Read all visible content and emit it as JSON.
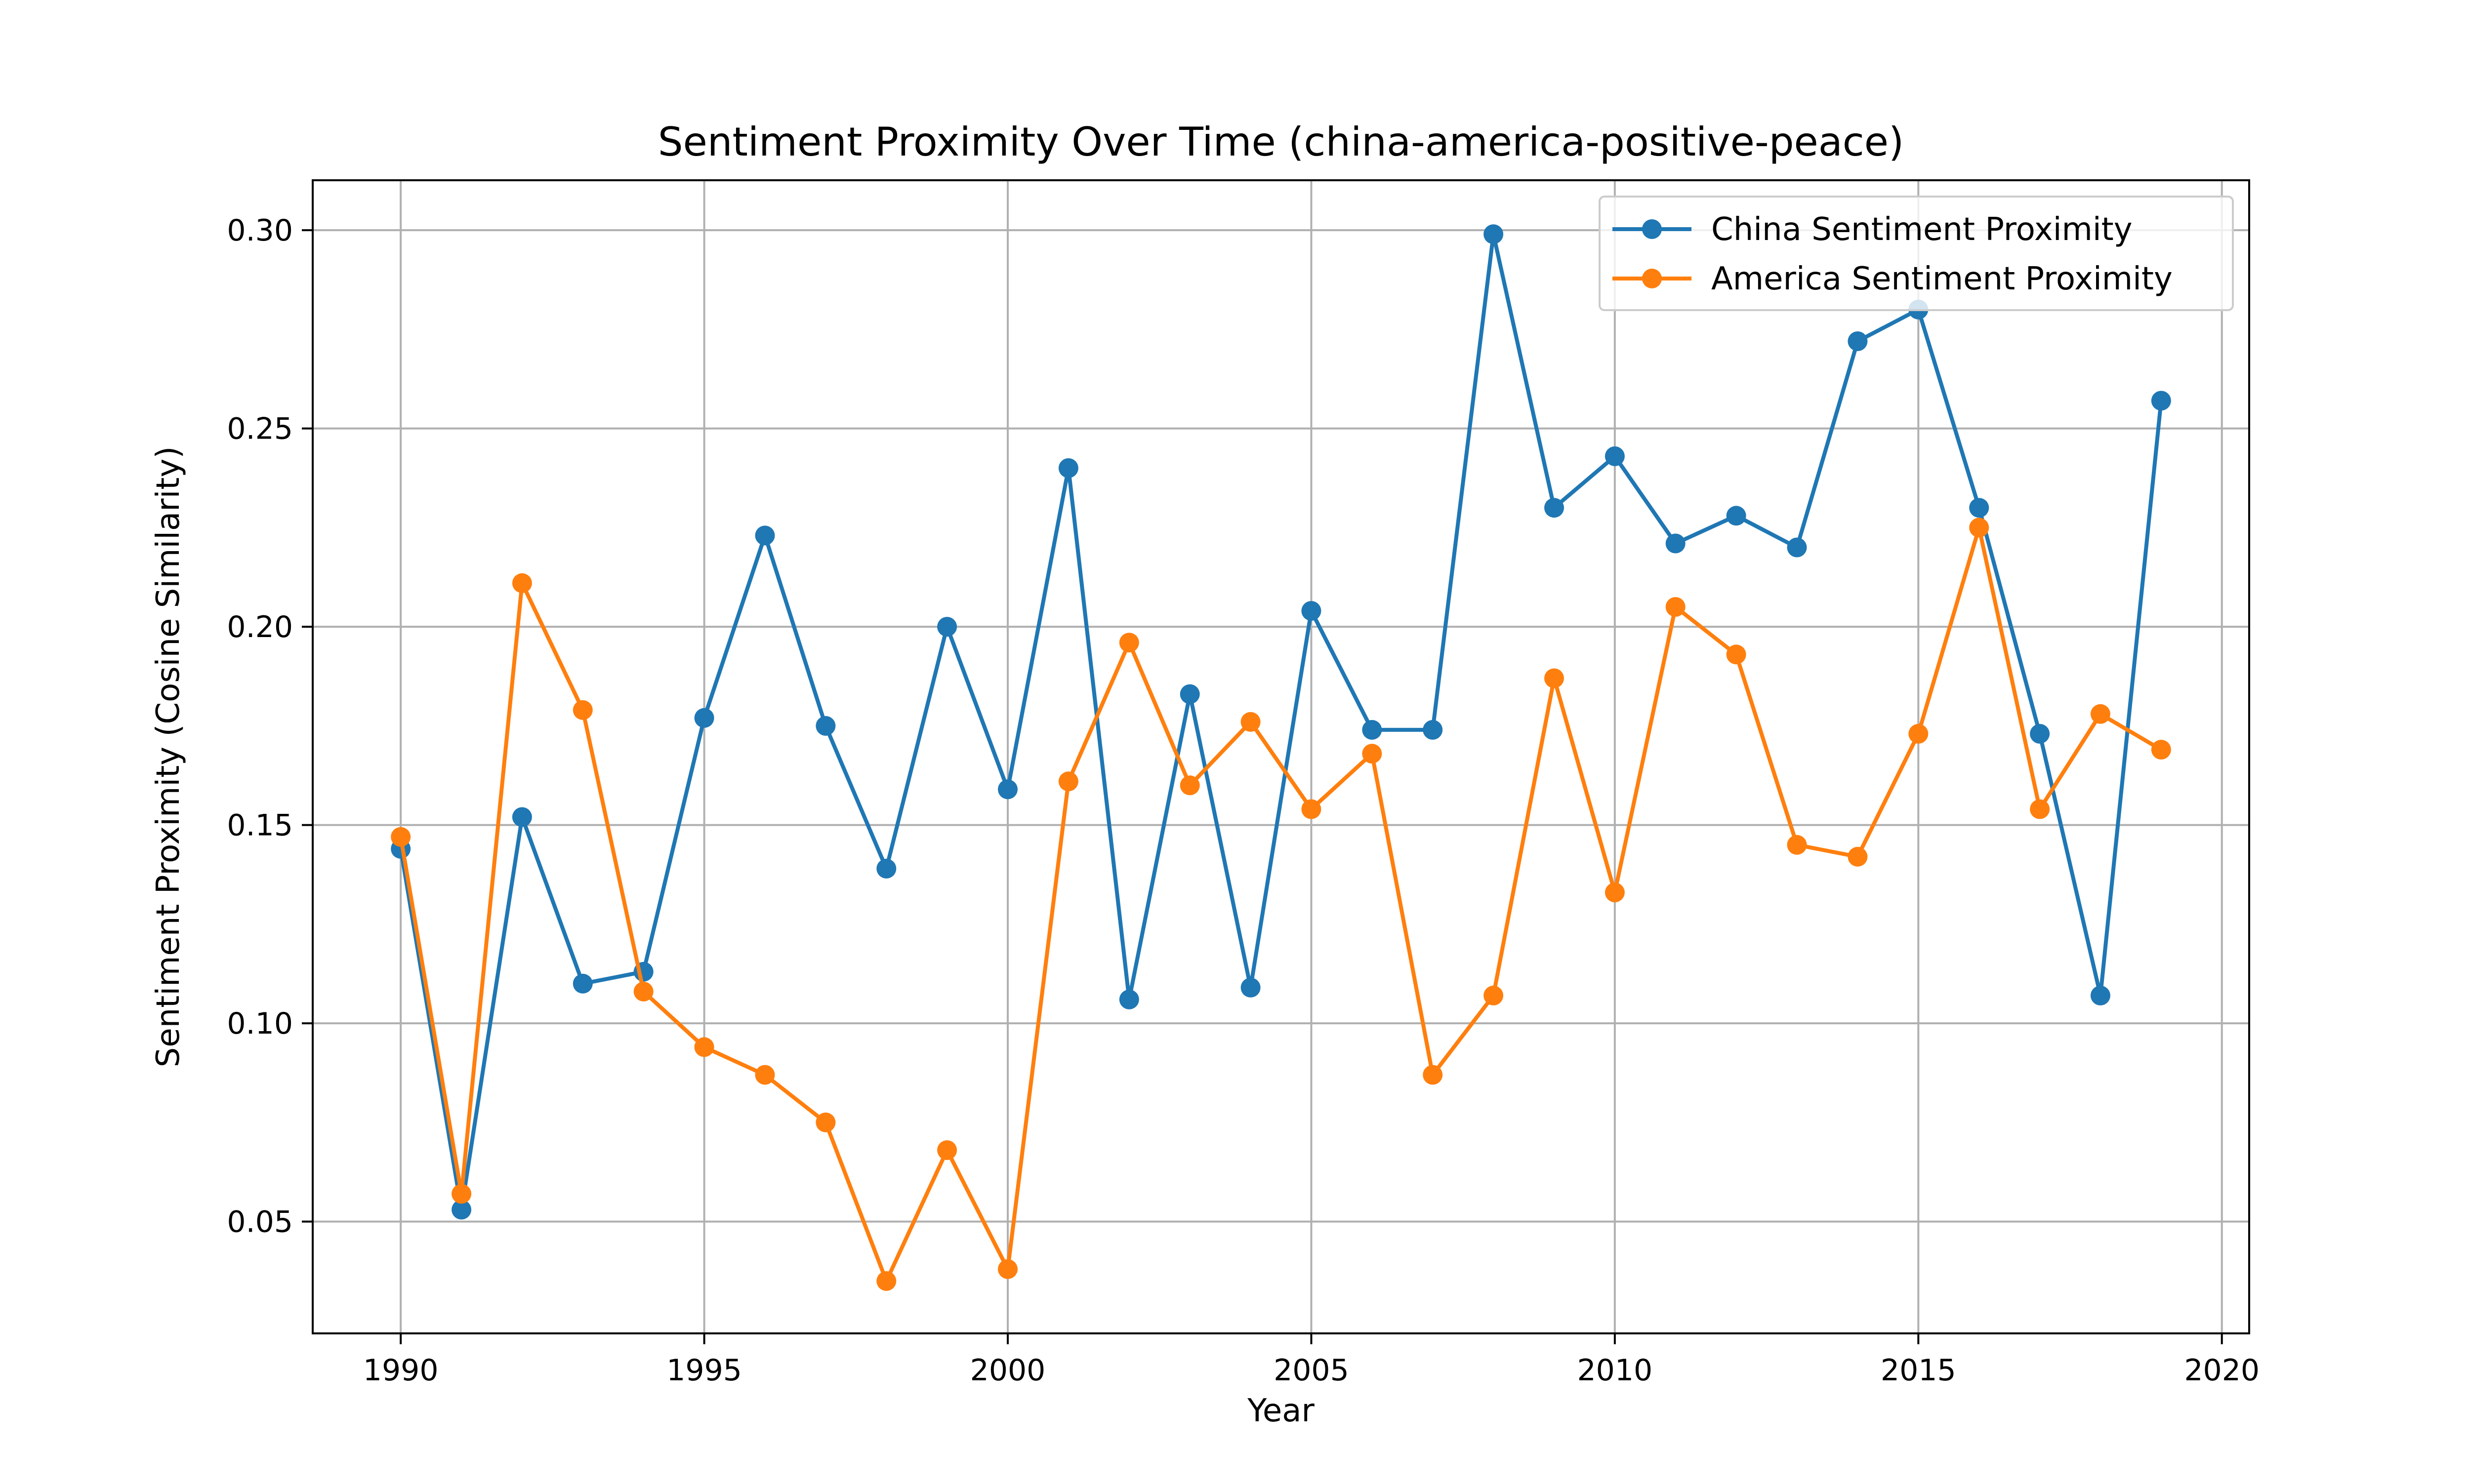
{
  "chart_data": {
    "type": "line",
    "title": "Sentiment Proximity Over Time (china-america-positive-peace)",
    "xlabel": "Year",
    "ylabel": "Sentiment Proximity (Cosine Similarity)",
    "xlim": [
      1988.55,
      2020.45
    ],
    "ylim": [
      0.0218,
      0.3126
    ],
    "x_ticks": [
      1990,
      1995,
      2000,
      2005,
      2010,
      2015,
      2020
    ],
    "x_tick_labels": [
      "1990",
      "1995",
      "2000",
      "2005",
      "2010",
      "2015",
      "2020"
    ],
    "y_ticks": [
      0.05,
      0.1,
      0.15,
      0.2,
      0.25,
      0.3
    ],
    "y_tick_labels": [
      "0.05",
      "0.10",
      "0.15",
      "0.20",
      "0.25",
      "0.30"
    ],
    "grid": true,
    "legend_position": "top-right",
    "x": [
      1990,
      1991,
      1992,
      1993,
      1994,
      1995,
      1996,
      1997,
      1998,
      1999,
      2000,
      2001,
      2002,
      2003,
      2004,
      2005,
      2006,
      2007,
      2008,
      2009,
      2010,
      2011,
      2012,
      2013,
      2014,
      2015,
      2016,
      2017,
      2018,
      2019
    ],
    "series": [
      {
        "name": "China Sentiment Proximity",
        "color": "#1f77b4",
        "values": [
          0.144,
          0.053,
          0.152,
          0.11,
          0.113,
          0.177,
          0.223,
          0.175,
          0.139,
          0.2,
          0.159,
          0.24,
          0.106,
          0.183,
          0.109,
          0.204,
          0.174,
          0.174,
          0.299,
          0.23,
          0.243,
          0.221,
          0.228,
          0.22,
          0.272,
          0.28,
          0.23,
          0.173,
          0.107,
          0.257
        ]
      },
      {
        "name": "America Sentiment Proximity",
        "color": "#ff7f0e",
        "values": [
          0.147,
          0.057,
          0.211,
          0.179,
          0.108,
          0.094,
          0.087,
          0.075,
          0.035,
          0.068,
          0.038,
          0.161,
          0.196,
          0.16,
          0.176,
          0.154,
          0.168,
          0.087,
          0.107,
          0.187,
          0.133,
          0.205,
          0.193,
          0.145,
          0.142,
          0.173,
          0.225,
          0.154,
          0.178,
          0.169
        ]
      }
    ]
  }
}
